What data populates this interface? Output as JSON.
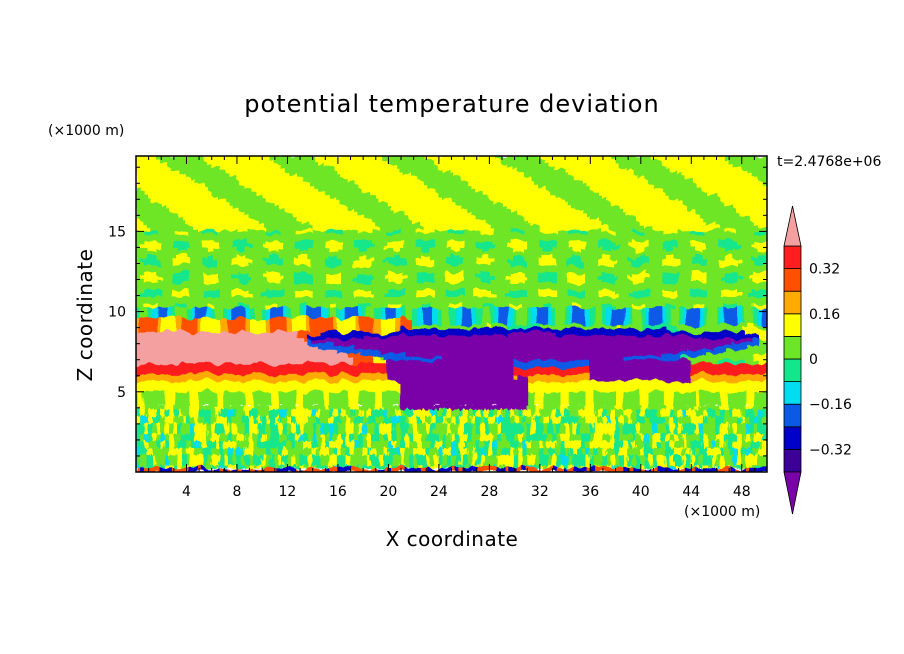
{
  "chart_data": {
    "type": "heatmap",
    "title": "potential temperature deviation",
    "xlabel": "X coordinate",
    "ylabel": "Z coordinate",
    "x_unit": "(×1000 m)",
    "y_unit": "(×1000 m)",
    "time_label": "t=2.4768e+06",
    "xlim": [
      0,
      50
    ],
    "ylim": [
      0,
      19.7
    ],
    "x_ticks": [
      "4",
      "8",
      "12",
      "16",
      "20",
      "24",
      "28",
      "32",
      "36",
      "40",
      "44",
      "48"
    ],
    "y_ticks": [
      "5",
      "10",
      "15"
    ],
    "colorbar": {
      "levels": [
        -0.4,
        -0.32,
        -0.24,
        -0.16,
        -0.08,
        0,
        0.08,
        0.16,
        0.24,
        0.32,
        0.4
      ],
      "tick_labels": [
        "0.32",
        "0.16",
        "0",
        "-0.16",
        "-0.32"
      ],
      "colors": [
        "#7a00a8",
        "#3c0096",
        "#0000c8",
        "#0a5ae6",
        "#00dcf0",
        "#14e68c",
        "#6ee628",
        "#ffff00",
        "#ffaa00",
        "#ff5000",
        "#ff1e1e",
        "#f5a0a0"
      ]
    },
    "fields": [
      {
        "description": "background near zero",
        "x": [
          0,
          50
        ],
        "z": [
          0,
          19.7
        ],
        "value": 0.03
      },
      {
        "description": "upper layer slightly positive",
        "x": [
          0,
          50
        ],
        "z": [
          15,
          19.7
        ],
        "value": 0.1
      },
      {
        "description": "warm layer upper-left",
        "x": [
          0,
          17
        ],
        "z": [
          6.7,
          8.7
        ],
        "value": 0.42
      },
      {
        "description": "warm layer band",
        "x": [
          0,
          50
        ],
        "z": [
          6.1,
          6.5
        ],
        "value": 0.34
      },
      {
        "description": "cold anomaly",
        "x": [
          13,
          50
        ],
        "z": [
          5.5,
          9.0
        ],
        "value": -0.42
      },
      {
        "description": "cold tongue",
        "x": [
          20,
          31
        ],
        "z": [
          3.9,
          6.0
        ],
        "value": -0.42
      }
    ]
  }
}
